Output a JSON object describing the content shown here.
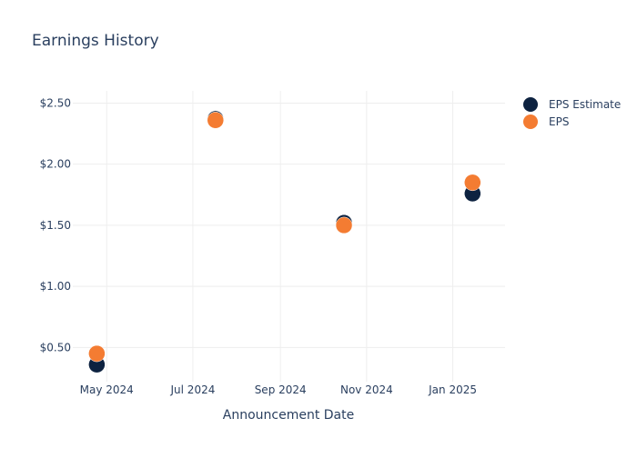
{
  "chart_data": {
    "type": "scatter",
    "title": "Earnings History",
    "xlabel": "Announcement Date",
    "ylabel": "",
    "x_ticks": [
      "May 2024",
      "Jul 2024",
      "Sep 2024",
      "Nov 2024",
      "Jan 2025"
    ],
    "y_ticks": [
      "$0.50",
      "$1.00",
      "$1.50",
      "$2.00",
      "$2.50"
    ],
    "y_tick_values": [
      0.5,
      1.0,
      1.5,
      2.0,
      2.5
    ],
    "xlim": [
      "2024-04-07",
      "2025-02-07"
    ],
    "ylim": [
      0.22,
      2.6
    ],
    "grid": true,
    "legend_position": "top-right",
    "series": [
      {
        "name": "EPS Estimate",
        "color": "#0d2240",
        "points": [
          {
            "x": "2024-04-24",
            "y": 0.36
          },
          {
            "x": "2024-07-17",
            "y": 2.37
          },
          {
            "x": "2024-10-16",
            "y": 1.52
          },
          {
            "x": "2025-01-15",
            "y": 1.76
          }
        ]
      },
      {
        "name": "EPS",
        "color": "#f47c32",
        "points": [
          {
            "x": "2024-04-24",
            "y": 0.45
          },
          {
            "x": "2024-07-17",
            "y": 2.36
          },
          {
            "x": "2024-10-16",
            "y": 1.5
          },
          {
            "x": "2025-01-15",
            "y": 1.85
          }
        ]
      }
    ]
  }
}
